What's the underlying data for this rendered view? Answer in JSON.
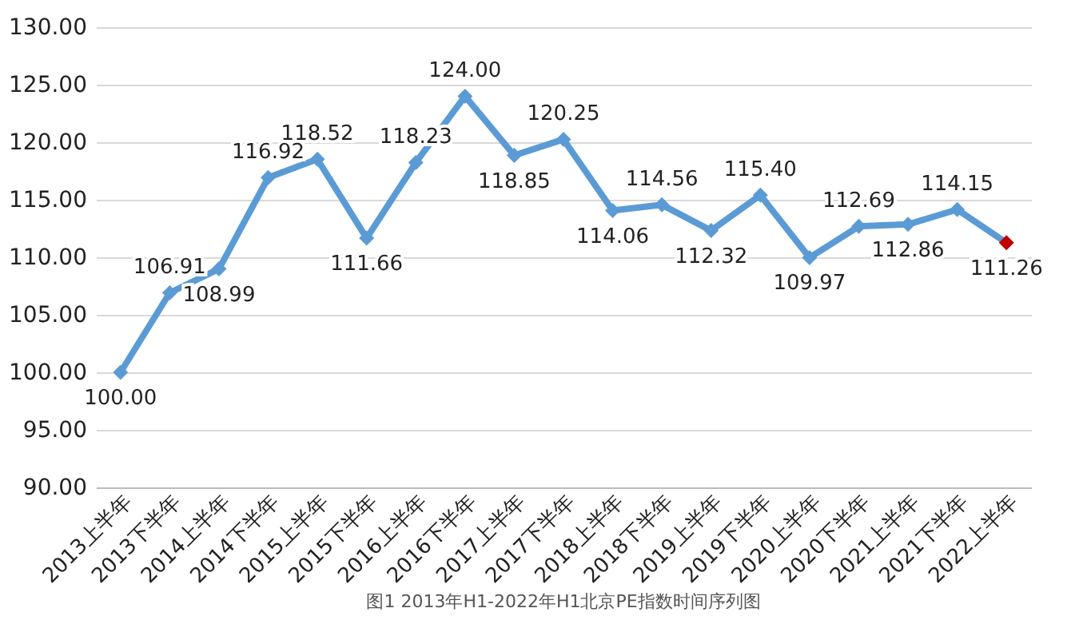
{
  "chart_data": {
    "type": "line",
    "categories": [
      "2013上半年",
      "2013下半年",
      "2014上半年",
      "2014下半年",
      "2015上半年",
      "2015下半年",
      "2016上半年",
      "2016下半年",
      "2017上半年",
      "2017下半年",
      "2018上半年",
      "2018下半年",
      "2019上半年",
      "2019下半年",
      "2020上半年",
      "2020下半年",
      "2021上半年",
      "2021下半年",
      "2022上半年"
    ],
    "series": [
      {
        "color": "#5b9bd5",
        "colors": [
          "#5b9bd5",
          "#5b9bd5",
          "#5b9bd5",
          "#5b9bd5",
          "#5b9bd5",
          "#5b9bd5",
          "#5b9bd5",
          "#5b9bd5",
          "#5b9bd5",
          "#5b9bd5",
          "#5b9bd5",
          "#5b9bd5",
          "#5b9bd5",
          "#5b9bd5",
          "#5b9bd5",
          "#5b9bd5",
          "#5b9bd5",
          "#5b9bd5",
          "#c00000"
        ],
        "values": [
          100.0,
          106.91,
          108.99,
          116.92,
          118.52,
          111.66,
          118.23,
          124.0,
          118.85,
          120.25,
          114.06,
          114.56,
          112.32,
          115.4,
          109.97,
          112.69,
          112.86,
          114.15,
          111.26
        ],
        "value_labels": [
          "100.00",
          "106.91",
          "108.99",
          "116.92",
          "118.52",
          "111.66",
          "118.23",
          "124.00",
          "118.85",
          "120.25",
          "114.06",
          "114.56",
          "112.32",
          "115.40",
          "109.97",
          "112.69",
          "112.86",
          "114.15",
          "111.26"
        ]
      }
    ],
    "ylim": [
      90,
      130
    ],
    "yticks": [
      {
        "value": 90,
        "label": "90.00"
      },
      {
        "value": 95,
        "label": "95.00"
      },
      {
        "value": 100,
        "label": "100.00"
      },
      {
        "value": 105,
        "label": "105.00"
      },
      {
        "value": 110,
        "label": "110.00"
      },
      {
        "value": 115,
        "label": "115.00"
      },
      {
        "value": 120,
        "label": "120.00"
      },
      {
        "value": 125,
        "label": "125.00"
      },
      {
        "value": 130,
        "label": "130.00"
      }
    ],
    "grid": "y",
    "marker": "diamond",
    "line_style": "solid",
    "annotations": [
      "图1 2013年H1-2022年H1北京PE指数时间序列图"
    ]
  }
}
